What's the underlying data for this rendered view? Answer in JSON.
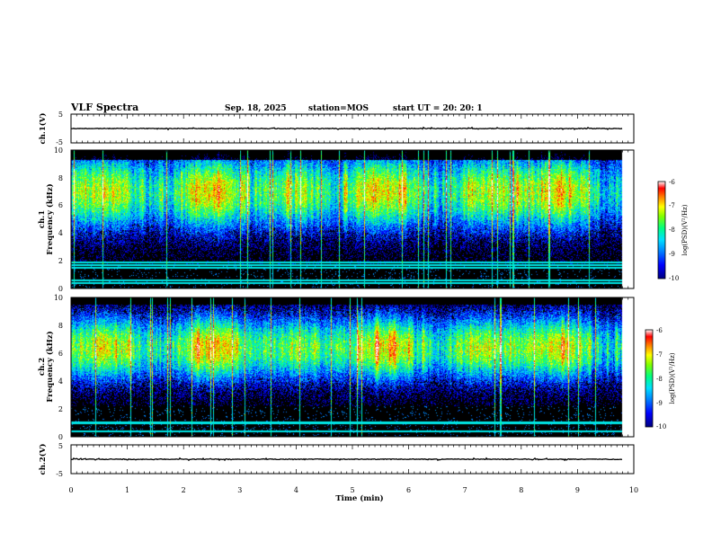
{
  "header": {
    "title": "VLF Spectra",
    "date": "Sep. 18, 2025",
    "station": "station=MOS",
    "start": "start  UT =   20: 20: 1"
  },
  "chart_data": [
    {
      "type": "line",
      "panel": "ch1-waveform",
      "ylabel": "ch.1(V)",
      "yticks": [
        "5",
        "-5"
      ],
      "ylim": [
        -5,
        5
      ],
      "xlim": [
        0,
        10
      ],
      "level": 0
    },
    {
      "type": "heatmap",
      "panel": "ch1-spectrogram",
      "ylabel_top": "ch.1",
      "ylabel": "Frequency (kHz)",
      "yticks": [
        "0",
        "2",
        "4",
        "6",
        "8",
        "10"
      ],
      "ylim": [
        0,
        10
      ],
      "xlim": [
        0,
        10
      ],
      "data_end_min": 9.8,
      "colorbar": {
        "label": "log(PSD)(V²/Hz)",
        "ticks": [
          "-6",
          "-7",
          "-8",
          "-9",
          "-10"
        ],
        "range": [
          -10,
          -6
        ]
      }
    },
    {
      "type": "heatmap",
      "panel": "ch2-spectrogram",
      "ylabel_top": "ch.2",
      "ylabel": "Frequency (kHz)",
      "yticks": [
        "0",
        "2",
        "4",
        "6",
        "8",
        "10"
      ],
      "ylim": [
        0,
        10
      ],
      "xlim": [
        0,
        10
      ],
      "data_end_min": 9.8,
      "colorbar": {
        "label": "log(PSD)(V²/Hz)",
        "ticks": [
          "-6",
          "-7",
          "-8",
          "-9",
          "-10"
        ],
        "range": [
          -10,
          -6
        ]
      }
    },
    {
      "type": "line",
      "panel": "ch2-waveform",
      "ylabel": "ch.2(V)",
      "yticks": [
        "5",
        "-5"
      ],
      "ylim": [
        -5,
        5
      ],
      "xlim": [
        0,
        10
      ],
      "level": 0
    }
  ],
  "xaxis": {
    "label": "Time (min)",
    "ticks": [
      "0",
      "1",
      "2",
      "3",
      "4",
      "5",
      "6",
      "7",
      "8",
      "9",
      "10"
    ]
  },
  "colormap": [
    "#000000",
    "#0000a0",
    "#0000ff",
    "#0080ff",
    "#00e0ff",
    "#00ff80",
    "#80ff00",
    "#ffff00",
    "#ff8000",
    "#ff0000",
    "#ffffff"
  ]
}
